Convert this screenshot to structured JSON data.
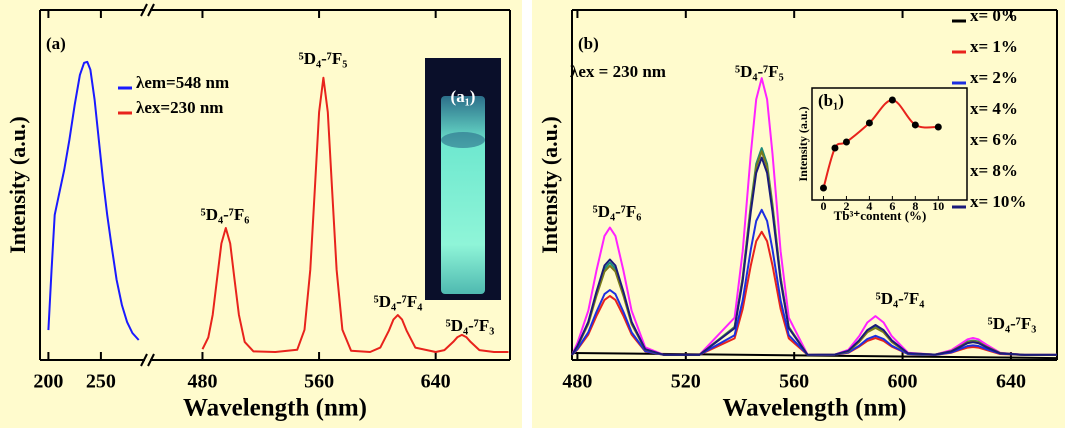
{
  "chart_data": [
    {
      "type": "line",
      "panel_label": "(a)",
      "xlabel": "Wavelength (nm)",
      "ylabel": "Intensity (a.u.)",
      "xlim": [
        [
          192,
          292
        ],
        [
          444,
          691
        ]
      ],
      "xticks": [
        200,
        250,
        480,
        560,
        640
      ],
      "ylim": [
        0,
        110
      ],
      "series": [
        {
          "name": "λem=548 nm",
          "color": "#1a1aff",
          "x": [
            200,
            203,
            206,
            210,
            215,
            220,
            225,
            230,
            234,
            237,
            240,
            244,
            248,
            252,
            256,
            260,
            265,
            270,
            275,
            280,
            286
          ],
          "values": [
            9.4,
            28,
            45.6,
            51.9,
            59.7,
            69.2,
            80.2,
            89.6,
            93.4,
            93.7,
            91.2,
            81.8,
            69.2,
            56.6,
            45.6,
            36.2,
            25.2,
            17.3,
            11.9,
            8.5,
            6.3
          ]
        },
        {
          "name": "λex=230 nm",
          "color": "#e8231c",
          "x": [
            480,
            484,
            487,
            490,
            493,
            496,
            499,
            502,
            505,
            509,
            515,
            530,
            545,
            550,
            554,
            557,
            560,
            563,
            566,
            569,
            572,
            576,
            582,
            595,
            602,
            608,
            611,
            614,
            617,
            620,
            626,
            640,
            646,
            652,
            655,
            658,
            661,
            664,
            670,
            680,
            690
          ],
          "values": [
            3.4,
            7.1,
            14.2,
            25.4,
            36.6,
            41.5,
            36.6,
            25.4,
            14.2,
            5.7,
            2.7,
            2.5,
            3.2,
            9.5,
            28.4,
            53.0,
            77.9,
            88.7,
            77.9,
            53.0,
            28.4,
            9.5,
            2.9,
            2.5,
            3.9,
            9.3,
            12.7,
            14.1,
            12.7,
            9.3,
            3.9,
            2.5,
            3.1,
            5.7,
            7.2,
            7.9,
            7.2,
            5.7,
            3.1,
            2.5,
            2.5
          ]
        }
      ],
      "annotations": [
        "⁵D₄-⁷F₆",
        "⁵D₄-⁷F₅",
        "⁵D₄-⁷F₄",
        "⁵D₄-⁷F₃"
      ],
      "inset_label": "(a₁)"
    },
    {
      "type": "line",
      "panel_label": "(b)",
      "xlabel": "Wavelength (nm)",
      "ylabel": "Intensity (a.u.)",
      "xlim": [
        478,
        657
      ],
      "xticks": [
        480,
        520,
        560,
        600,
        640
      ],
      "ylim": [
        0,
        110
      ],
      "x": [
        478,
        480,
        484,
        487,
        490,
        492,
        494,
        497,
        500,
        505,
        512,
        525,
        538,
        541,
        544,
        546,
        548,
        550,
        552,
        555,
        558,
        565,
        575,
        580,
        584,
        587,
        590,
        593,
        596,
        602,
        612,
        618,
        621,
        624,
        626,
        628,
        631,
        636,
        645,
        657
      ],
      "series": [
        {
          "name": "x= 0%",
          "color": "#000000",
          "x": [
            478,
            657
          ],
          "values": [
            2.2,
            0.6
          ]
        },
        {
          "name": "x= 1%",
          "color": "#e8231c",
          "values": [
            1.6,
            3.3,
            8.0,
            13.8,
            18.9,
            20.1,
            18.9,
            13.8,
            8.0,
            2.7,
            1.6,
            1.6,
            6.8,
            16.1,
            29.7,
            37.3,
            40.3,
            37.3,
            29.7,
            16.1,
            6.8,
            1.6,
            1.7,
            2.3,
            4.2,
            6.0,
            6.9,
            6.0,
            4.2,
            1.9,
            1.6,
            2.3,
            3.1,
            3.9,
            4.1,
            3.9,
            3.1,
            1.9,
            1.6,
            1.6
          ]
        },
        {
          "name": "x= 2%",
          "color": "#1d2fe0",
          "values": [
            1.6,
            3.5,
            8.7,
            15.1,
            20.7,
            22.0,
            20.7,
            15.1,
            8.7,
            2.8,
            1.6,
            1.6,
            7.8,
            18.7,
            34.7,
            43.7,
            47.2,
            43.7,
            34.7,
            18.7,
            7.8,
            1.6,
            1.7,
            2.4,
            4.5,
            6.6,
            7.6,
            6.6,
            4.5,
            1.9,
            1.6,
            2.4,
            3.4,
            4.4,
            4.6,
            4.4,
            3.4,
            2.0,
            1.6,
            1.6
          ]
        },
        {
          "name": "x= 4%",
          "color": "#1a8a7a",
          "values": [
            1.6,
            4.3,
            11.7,
            20.7,
            28.7,
            30.6,
            28.7,
            20.7,
            11.7,
            3.4,
            1.6,
            1.6,
            10.4,
            26.0,
            48.8,
            61.6,
            66.6,
            61.6,
            48.8,
            26.0,
            10.4,
            1.6,
            1.7,
            2.8,
            6.0,
            9.1,
            10.6,
            9.1,
            6.0,
            2.1,
            1.7,
            2.9,
            4.3,
            5.8,
            6.1,
            5.8,
            4.3,
            2.2,
            1.6,
            1.6
          ]
        },
        {
          "name": "x= 6%",
          "color": "#ff22ff",
          "values": [
            1.6,
            5.3,
            15.5,
            28.0,
            39.0,
            41.6,
            39.0,
            28.0,
            15.5,
            4.0,
            1.6,
            1.6,
            13.3,
            34.2,
            64.8,
            81.9,
            88.6,
            81.9,
            64.8,
            34.2,
            13.3,
            1.6,
            1.7,
            3.2,
            7.5,
            11.8,
            13.8,
            11.8,
            7.5,
            2.3,
            1.7,
            3.1,
            4.8,
            6.5,
            6.9,
            6.5,
            4.8,
            2.3,
            1.6,
            1.6
          ]
        },
        {
          "name": "x= 8%",
          "color": "#7a7a1a",
          "values": [
            1.6,
            4.2,
            11.3,
            20.1,
            27.8,
            29.6,
            27.8,
            20.1,
            11.3,
            3.3,
            1.6,
            1.6,
            10.2,
            25.6,
            48.1,
            60.7,
            65.6,
            60.7,
            48.1,
            25.6,
            10.2,
            1.6,
            1.7,
            2.7,
            5.7,
            8.7,
            10.1,
            8.7,
            5.7,
            2.1,
            1.7,
            2.8,
            4.2,
            5.6,
            5.9,
            5.6,
            4.2,
            2.2,
            1.6,
            1.6
          ]
        },
        {
          "name": "x= 10%",
          "color": "#1a1a7a",
          "values": [
            1.6,
            4.4,
            12.0,
            21.4,
            29.7,
            31.6,
            29.7,
            21.4,
            12.0,
            3.4,
            1.6,
            1.6,
            10.0,
            24.9,
            46.6,
            58.8,
            63.6,
            58.8,
            46.6,
            24.9,
            10.0,
            1.6,
            1.7,
            2.9,
            6.2,
            9.4,
            11.0,
            9.4,
            6.2,
            2.1,
            1.7,
            2.7,
            4.0,
            5.3,
            5.6,
            5.3,
            4.0,
            2.1,
            1.6,
            1.6
          ]
        }
      ],
      "annotations": [
        "λex = 230 nm",
        "⁵D₄-⁷F₅",
        "⁵D₄-⁷F₆",
        "⁵D₄-⁷F₄",
        "⁵D₄-⁷F₃"
      ],
      "inset": {
        "type": "line",
        "label": "(b₁)",
        "xlabel": "Tb³⁺content (%)",
        "ylabel": "Intensity (a.u.)",
        "xlim": [
          -1,
          12.5
        ],
        "xticks": [
          0,
          2,
          4,
          6,
          8,
          10
        ],
        "ylim": [
          0,
          100
        ],
        "color": "#e8231c",
        "x": [
          0,
          1,
          2,
          4,
          6,
          8,
          10
        ],
        "values": [
          10.7,
          46.4,
          51.8,
          68.8,
          89.3,
          67,
          65.2
        ]
      }
    }
  ]
}
